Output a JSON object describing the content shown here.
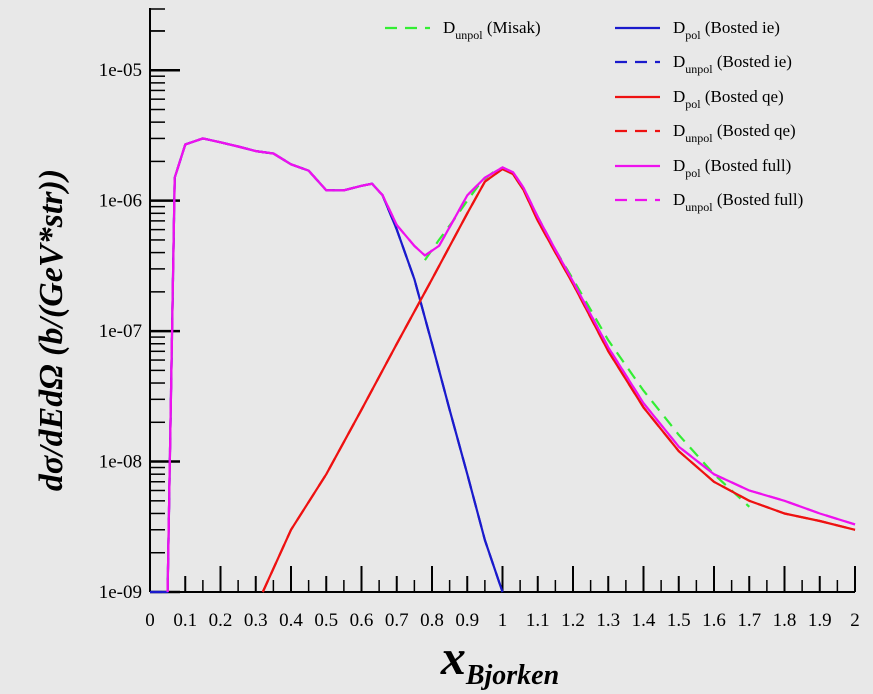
{
  "chart_data": {
    "type": "line",
    "xlabel": "x",
    "xlabel_sub": "Bjorken",
    "ylabel": "dσ/dEdΩ (b/(GeV*str))",
    "xlim": [
      0,
      2
    ],
    "ylim": [
      1e-09,
      3e-05
    ],
    "yscale": "log",
    "x_ticks": [
      "0",
      "0.1",
      "0.2",
      "0.3",
      "0.4",
      "0.5",
      "0.6",
      "0.7",
      "0.8",
      "0.9",
      "1",
      "1.1",
      "1.2",
      "1.3",
      "1.4",
      "1.5",
      "1.6",
      "1.7",
      "1.8",
      "1.9",
      "2"
    ],
    "y_ticks": [
      "1e-09",
      "1e-08",
      "1e-07",
      "1e-06",
      "1e-05"
    ],
    "legend_position": "top-right",
    "series": [
      {
        "legend_main": "D",
        "legend_sub": "unpol",
        "legend_rest": " (Misak)",
        "color": "#33ee33",
        "dash": true,
        "x": [
          0.78,
          0.82,
          0.86,
          0.9,
          0.94,
          0.98,
          1.0,
          1.03,
          1.06,
          1.1,
          1.15,
          1.2,
          1.3,
          1.4,
          1.5,
          1.6,
          1.7
        ],
        "y": [
          3.5e-07,
          5e-07,
          7e-07,
          1e-06,
          1.4e-06,
          1.7e-06,
          1.75e-06,
          1.6e-06,
          1.2e-06,
          7.5e-07,
          4.2e-07,
          2.5e-07,
          8.5e-08,
          3.5e-08,
          1.6e-08,
          8e-09,
          4.5e-09
        ]
      },
      {
        "legend_main": "D",
        "legend_sub": "pol",
        "legend_rest": " (Bosted  ie)",
        "color": "#1a1acc",
        "dash": false,
        "x": [
          0.0,
          0.05,
          0.07,
          0.1,
          0.15,
          0.2,
          0.25,
          0.3,
          0.35,
          0.4,
          0.45,
          0.5,
          0.55,
          0.6,
          0.63,
          0.66,
          0.7,
          0.75,
          0.8,
          0.85,
          0.9,
          0.95,
          1.0
        ],
        "y": [
          1e-09,
          1e-09,
          1.5e-06,
          2.7e-06,
          3e-06,
          2.8e-06,
          2.6e-06,
          2.4e-06,
          2.3e-06,
          1.9e-06,
          1.7e-06,
          1.2e-06,
          1.2e-06,
          1.3e-06,
          1.35e-06,
          1.1e-06,
          6e-07,
          2.5e-07,
          8e-08,
          2.5e-08,
          8e-09,
          2.5e-09,
          1e-09
        ]
      },
      {
        "legend_main": "D",
        "legend_sub": "unpol",
        "legend_rest": " (Bosted ie)",
        "color": "#1a1acc",
        "dash": true,
        "x": [
          0.0,
          0.05,
          0.07,
          0.1,
          0.15,
          0.2,
          0.25,
          0.3,
          0.35,
          0.4,
          0.45,
          0.5,
          0.55,
          0.6,
          0.63,
          0.66,
          0.7,
          0.75,
          0.8,
          0.85,
          0.9,
          0.95,
          1.0
        ],
        "y": [
          1e-09,
          1e-09,
          1.5e-06,
          2.7e-06,
          3e-06,
          2.8e-06,
          2.6e-06,
          2.4e-06,
          2.3e-06,
          1.9e-06,
          1.7e-06,
          1.2e-06,
          1.2e-06,
          1.3e-06,
          1.35e-06,
          1.1e-06,
          6e-07,
          2.5e-07,
          8e-08,
          2.5e-08,
          8e-09,
          2.5e-09,
          1e-09
        ]
      },
      {
        "legend_main": "D",
        "legend_sub": "pol",
        "legend_rest": " (Bosted  qe)",
        "color": "#ee1111",
        "dash": false,
        "x": [
          0.32,
          0.4,
          0.5,
          0.6,
          0.7,
          0.8,
          0.9,
          0.95,
          1.0,
          1.03,
          1.06,
          1.1,
          1.15,
          1.2,
          1.3,
          1.4,
          1.5,
          1.6,
          1.7,
          1.8,
          1.9,
          2.0
        ],
        "y": [
          1e-09,
          3e-09,
          8e-09,
          2.5e-08,
          8e-08,
          2.5e-07,
          8e-07,
          1.4e-06,
          1.75e-06,
          1.6e-06,
          1.2e-06,
          7e-07,
          4e-07,
          2.3e-07,
          7e-08,
          2.6e-08,
          1.2e-08,
          7e-09,
          5e-09,
          4e-09,
          3.5e-09,
          3e-09
        ]
      },
      {
        "legend_main": "D",
        "legend_sub": "unpol",
        "legend_rest": " (Bosted qe)",
        "color": "#ee1111",
        "dash": true,
        "x": [
          0.32,
          0.4,
          0.5,
          0.6,
          0.7,
          0.8,
          0.9,
          0.95,
          1.0,
          1.03,
          1.06,
          1.1,
          1.15,
          1.2,
          1.3,
          1.4,
          1.5,
          1.6,
          1.7,
          1.8,
          1.9,
          2.0
        ],
        "y": [
          1e-09,
          3e-09,
          8e-09,
          2.5e-08,
          8e-08,
          2.5e-07,
          8e-07,
          1.4e-06,
          1.75e-06,
          1.6e-06,
          1.2e-06,
          7e-07,
          4e-07,
          2.3e-07,
          7e-08,
          2.6e-08,
          1.2e-08,
          7e-09,
          5e-09,
          4e-09,
          3.5e-09,
          3e-09
        ]
      },
      {
        "legend_main": "D",
        "legend_sub": "pol",
        "legend_rest": " (Bosted  full)",
        "color": "#ee11ee",
        "dash": false,
        "x": [
          0.05,
          0.07,
          0.1,
          0.15,
          0.2,
          0.25,
          0.3,
          0.35,
          0.4,
          0.45,
          0.5,
          0.55,
          0.6,
          0.63,
          0.66,
          0.7,
          0.75,
          0.78,
          0.82,
          0.86,
          0.9,
          0.95,
          1.0,
          1.03,
          1.06,
          1.1,
          1.15,
          1.2,
          1.3,
          1.4,
          1.5,
          1.6,
          1.7,
          1.8,
          1.9,
          2.0
        ],
        "y": [
          1e-09,
          1.5e-06,
          2.7e-06,
          3e-06,
          2.8e-06,
          2.6e-06,
          2.4e-06,
          2.3e-06,
          1.9e-06,
          1.7e-06,
          1.2e-06,
          1.2e-06,
          1.3e-06,
          1.35e-06,
          1.1e-06,
          6.5e-07,
          4.5e-07,
          3.8e-07,
          4.5e-07,
          7e-07,
          1.1e-06,
          1.5e-06,
          1.8e-06,
          1.65e-06,
          1.25e-06,
          7.5e-07,
          4.2e-07,
          2.4e-07,
          7.5e-08,
          2.8e-08,
          1.3e-08,
          8e-09,
          6e-09,
          5e-09,
          4e-09,
          3.3e-09
        ]
      },
      {
        "legend_main": "D",
        "legend_sub": "unpol",
        "legend_rest": " (Bosted full)",
        "color": "#ee11ee",
        "dash": true,
        "x": [
          0.05,
          0.07,
          0.1,
          0.15,
          0.2,
          0.25,
          0.3,
          0.35,
          0.4,
          0.45,
          0.5,
          0.55,
          0.6,
          0.63,
          0.66,
          0.7,
          0.75,
          0.78,
          0.82,
          0.86,
          0.9,
          0.95,
          1.0,
          1.03,
          1.06,
          1.1,
          1.15,
          1.2,
          1.3,
          1.4,
          1.5,
          1.6,
          1.7,
          1.8,
          1.9,
          2.0
        ],
        "y": [
          1e-09,
          1.5e-06,
          2.7e-06,
          3e-06,
          2.8e-06,
          2.6e-06,
          2.4e-06,
          2.3e-06,
          1.9e-06,
          1.7e-06,
          1.2e-06,
          1.2e-06,
          1.3e-06,
          1.35e-06,
          1.1e-06,
          6.5e-07,
          4.5e-07,
          3.8e-07,
          4.5e-07,
          7e-07,
          1.1e-06,
          1.5e-06,
          1.8e-06,
          1.65e-06,
          1.25e-06,
          7.5e-07,
          4.2e-07,
          2.4e-07,
          7.5e-08,
          2.8e-08,
          1.3e-08,
          8e-09,
          6e-09,
          5e-09,
          4e-09,
          3.3e-09
        ]
      }
    ]
  }
}
